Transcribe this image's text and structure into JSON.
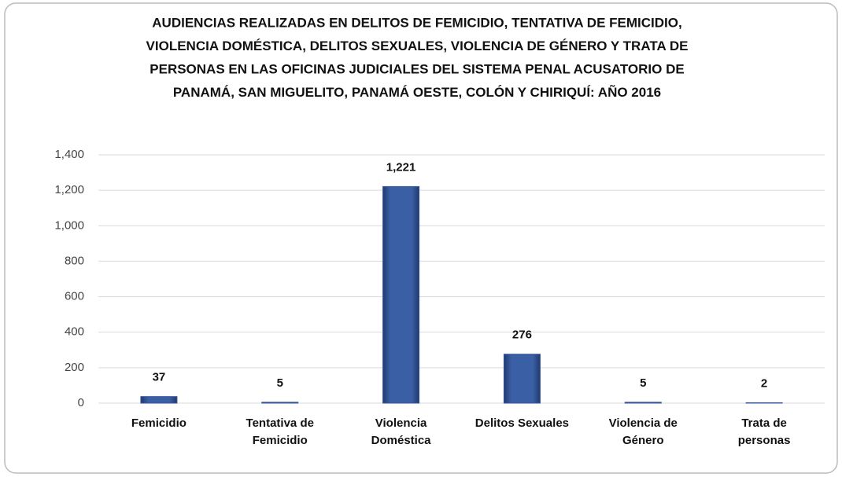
{
  "chart_data": {
    "type": "bar",
    "title": [
      "AUDIENCIAS REALIZADAS EN DELITOS DE FEMICIDIO, TENTATIVA DE FEMICIDIO,",
      "VIOLENCIA DOMÉSTICA, DELITOS SEXUALES, VIOLENCIA DE GÉNERO Y TRATA DE",
      "PERSONAS EN LAS OFICINAS JUDICIALES DEL SISTEMA PENAL ACUSATORIO DE",
      "PANAMÁ, SAN MIGUELITO, PANAMÁ OESTE, COLÓN Y CHIRIQUÍ: AÑO 2016"
    ],
    "categories": [
      "Femicidio",
      "Tentativa de Femicidio",
      "Violencia Doméstica",
      "Delitos Sexuales",
      "Violencia de Género",
      "Trata de personas"
    ],
    "values": [
      37,
      5,
      1221,
      276,
      5,
      2
    ],
    "value_labels": [
      "37",
      "5",
      "1,221",
      "276",
      "5",
      "2"
    ],
    "color": "#34579a",
    "ylim": [
      0,
      1400
    ],
    "yticks": [
      0,
      200,
      400,
      600,
      800,
      {
        "value": 1000,
        "label": "1,000"
      },
      {
        "value": 1200,
        "label": "1,200"
      },
      {
        "value": 1400,
        "label": "1,400"
      }
    ],
    "grid": true
  }
}
